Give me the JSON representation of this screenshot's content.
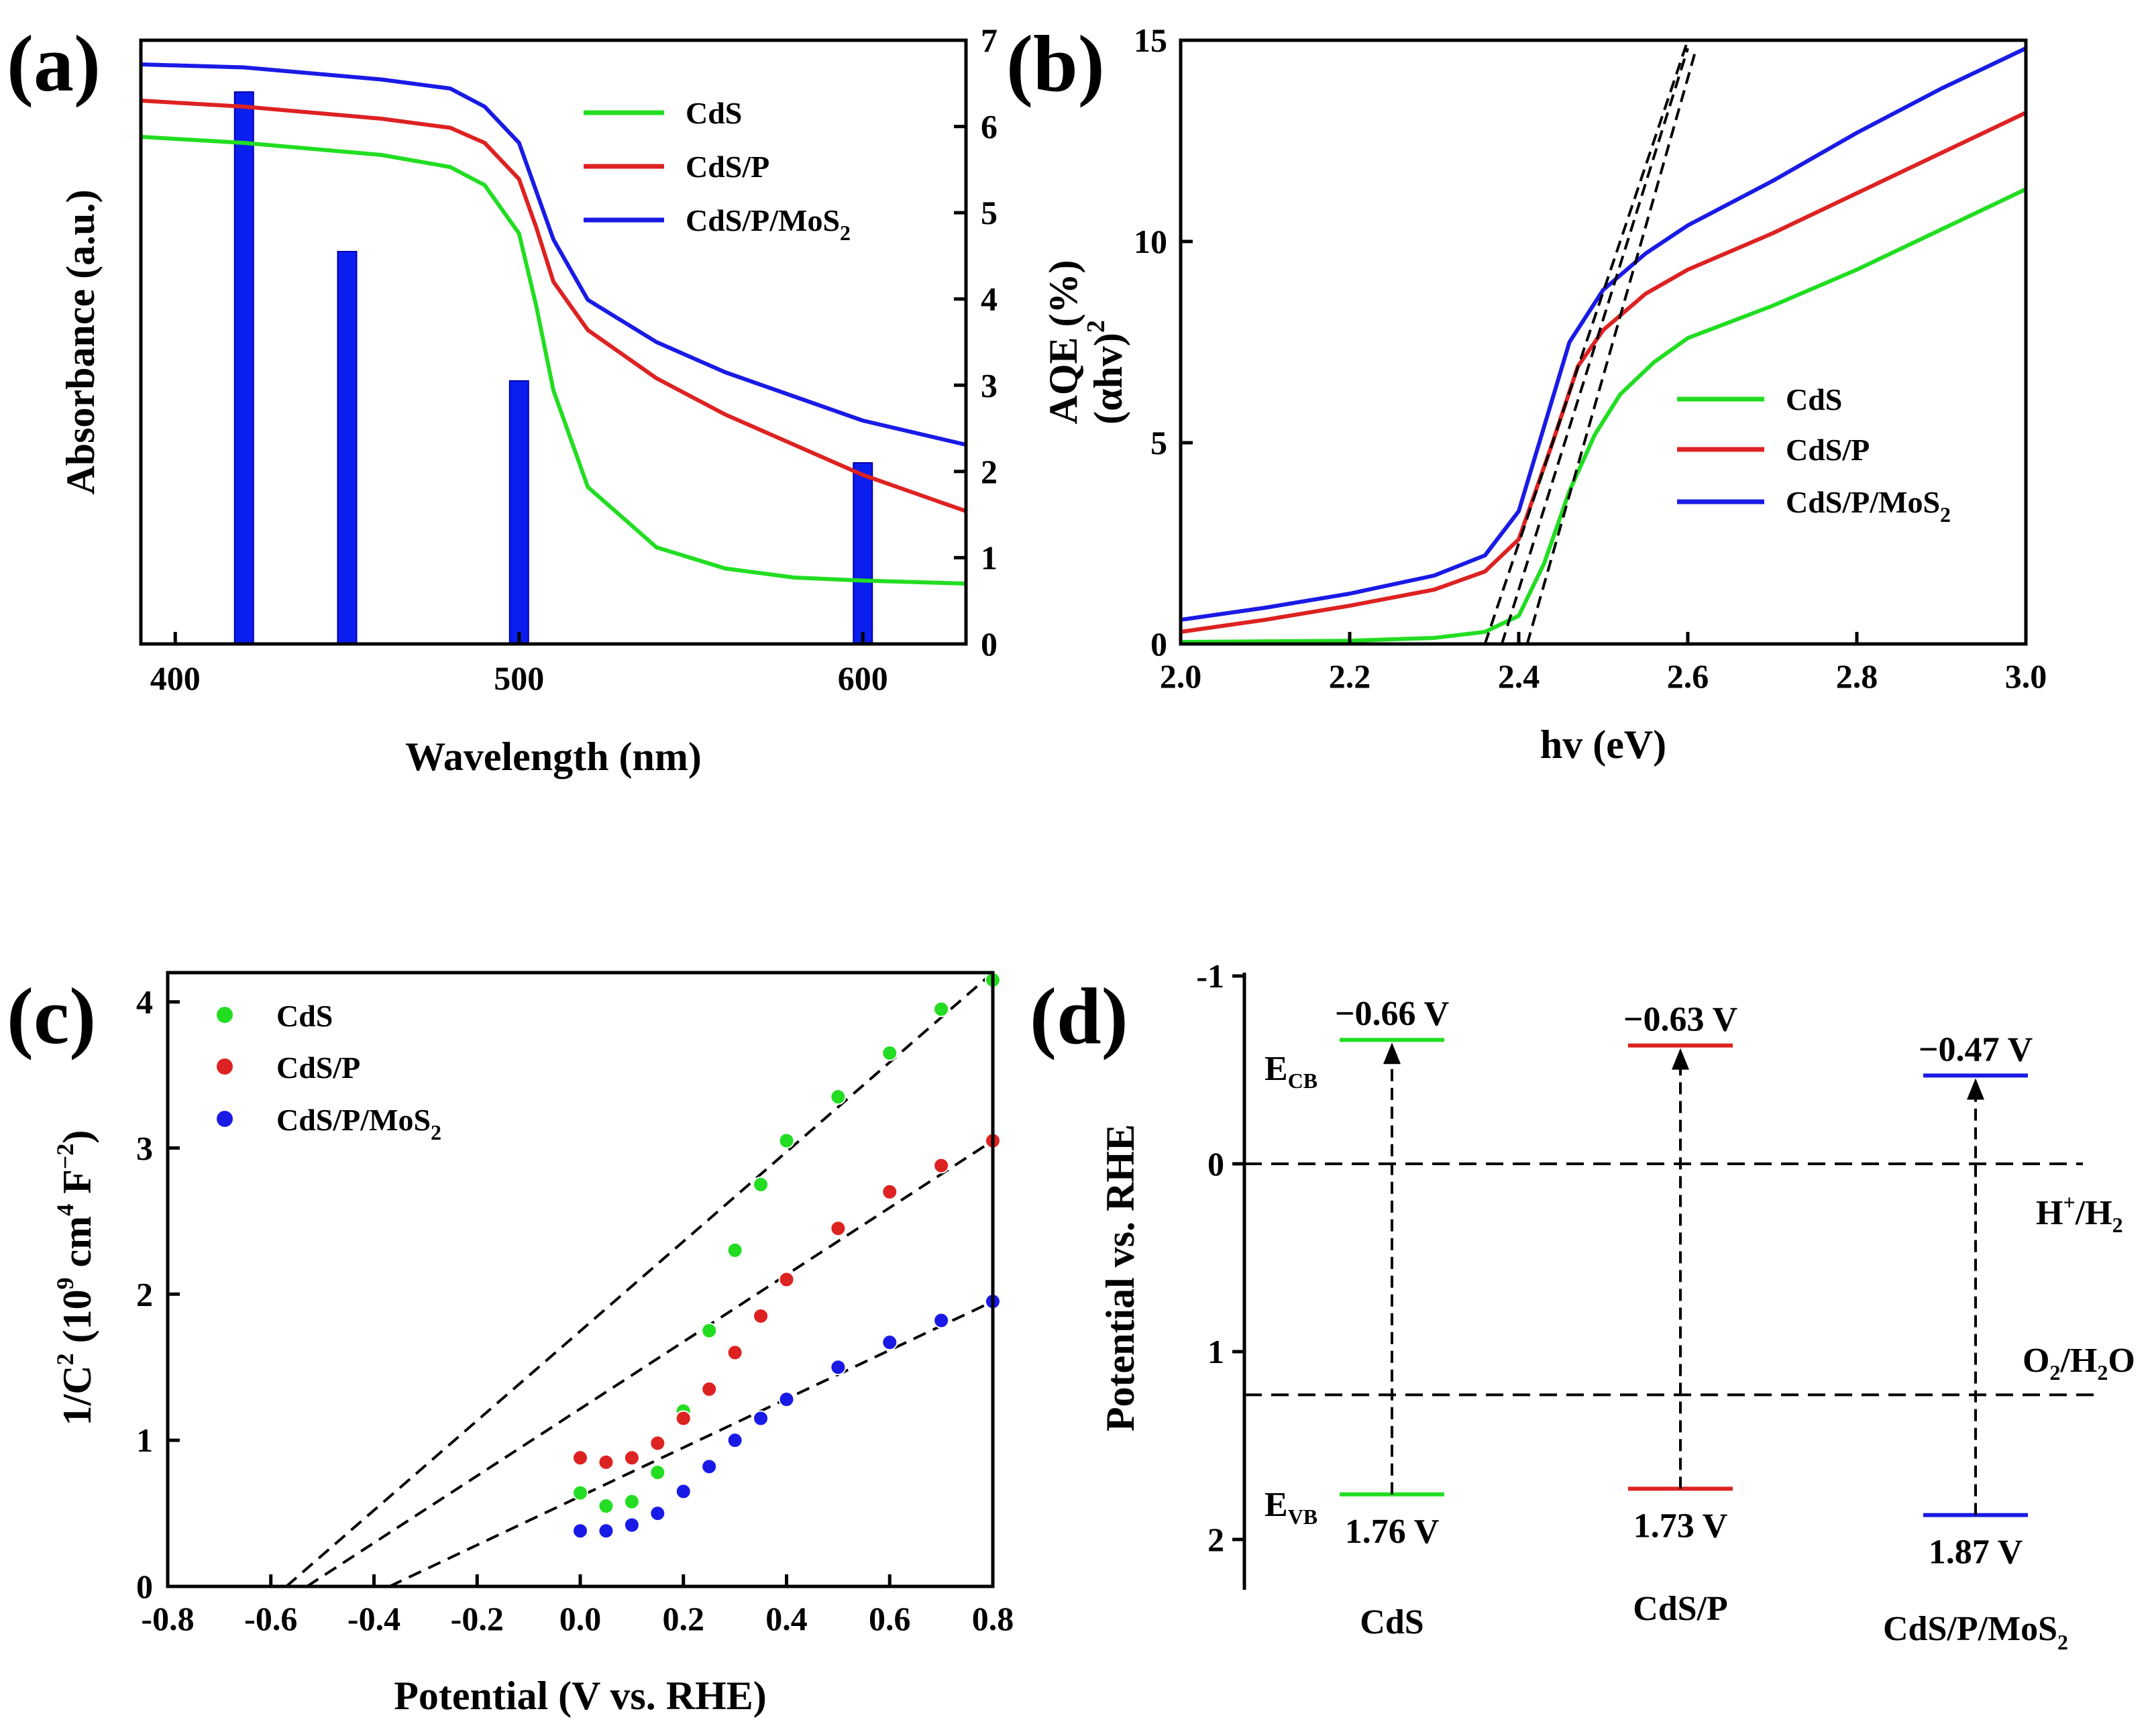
{
  "colors": {
    "CdS": "#22dd22",
    "CdS/P": "#dd2222",
    "CdS/P/MoS2": "#1a1ae6",
    "bar": "#0a1ef0",
    "dashed": "#000000"
  },
  "chart_data": [
    {
      "panel": "(a)",
      "type": "line",
      "xlabel": "Wavelength (nm)",
      "ylabel": "Absorbance (a.u.)",
      "y2label": "AQE (%)",
      "xlim": [
        390,
        630
      ],
      "xticks": [
        "400",
        "500",
        "600"
      ],
      "y2lim": [
        0,
        7
      ],
      "y2ticks": [
        "0",
        "1",
        "2",
        "3",
        "4",
        "5",
        "6",
        "7"
      ],
      "legend": [
        "CdS",
        "CdS/P",
        "CdS/P/MoS2"
      ],
      "series": [
        {
          "name": "CdS",
          "x": [
            390,
            420,
            460,
            480,
            490,
            500,
            505,
            510,
            520,
            540,
            560,
            580,
            600,
            630
          ],
          "y": [
            0.84,
            0.83,
            0.81,
            0.79,
            0.76,
            0.68,
            0.56,
            0.42,
            0.26,
            0.16,
            0.125,
            0.11,
            0.105,
            0.1
          ]
        },
        {
          "name": "CdS/P",
          "x": [
            390,
            420,
            460,
            480,
            490,
            500,
            505,
            510,
            520,
            540,
            560,
            580,
            600,
            630
          ],
          "y": [
            0.9,
            0.89,
            0.87,
            0.855,
            0.83,
            0.77,
            0.69,
            0.6,
            0.52,
            0.44,
            0.38,
            0.33,
            0.28,
            0.22
          ]
        },
        {
          "name": "CdS/P/MoS2",
          "x": [
            390,
            420,
            460,
            480,
            490,
            500,
            505,
            510,
            520,
            540,
            560,
            580,
            600,
            630
          ],
          "y": [
            0.96,
            0.955,
            0.935,
            0.92,
            0.89,
            0.83,
            0.75,
            0.67,
            0.57,
            0.5,
            0.45,
            0.41,
            0.37,
            0.33
          ]
        }
      ],
      "bars": {
        "name": "AQE",
        "x": [
          420,
          450,
          500,
          600
        ],
        "values": [
          6.4,
          4.55,
          3.05,
          2.1
        ]
      }
    },
    {
      "panel": "(b)",
      "type": "line",
      "xlabel": "hv (eV)",
      "ylabel": "(αhv)",
      "ylabel_sup": "2",
      "xlim": [
        2.0,
        3.0
      ],
      "ylim": [
        0,
        15
      ],
      "xticks": [
        "2.0",
        "2.2",
        "2.4",
        "2.6",
        "2.8",
        "3.0"
      ],
      "yticks": [
        "0",
        "5",
        "10",
        "15"
      ],
      "legend": [
        "CdS",
        "CdS/P",
        "CdS/P/MoS2"
      ],
      "series": [
        {
          "name": "CdS",
          "x": [
            2.0,
            2.2,
            2.3,
            2.36,
            2.4,
            2.43,
            2.46,
            2.49,
            2.52,
            2.56,
            2.6,
            2.7,
            2.8,
            2.9,
            3.0
          ],
          "y": [
            0.05,
            0.08,
            0.15,
            0.3,
            0.7,
            2.0,
            3.8,
            5.2,
            6.2,
            7.0,
            7.6,
            8.4,
            9.3,
            10.3,
            11.3
          ]
        },
        {
          "name": "CdS/P",
          "x": [
            2.0,
            2.1,
            2.2,
            2.3,
            2.36,
            2.4,
            2.44,
            2.47,
            2.5,
            2.55,
            2.6,
            2.7,
            2.8,
            2.9,
            3.0
          ],
          "y": [
            0.3,
            0.6,
            0.95,
            1.35,
            1.8,
            2.6,
            5.0,
            6.9,
            7.8,
            8.7,
            9.3,
            10.2,
            11.2,
            12.2,
            13.2
          ]
        },
        {
          "name": "CdS/P/MoS2",
          "x": [
            2.0,
            2.1,
            2.2,
            2.3,
            2.36,
            2.4,
            2.43,
            2.46,
            2.5,
            2.55,
            2.6,
            2.7,
            2.8,
            2.9,
            3.0
          ],
          "y": [
            0.6,
            0.9,
            1.25,
            1.7,
            2.2,
            3.3,
            5.4,
            7.5,
            8.8,
            9.7,
            10.4,
            11.5,
            12.7,
            13.8,
            14.8
          ]
        }
      ],
      "fit_lines": [
        {
          "x": [
            2.36,
            2.6
          ],
          "y": [
            0,
            15
          ]
        },
        {
          "x": [
            2.38,
            2.6
          ],
          "y": [
            0,
            14.8
          ]
        },
        {
          "x": [
            2.41,
            2.61
          ],
          "y": [
            0,
            14.8
          ]
        }
      ]
    },
    {
      "panel": "(c)",
      "type": "scatter",
      "xlabel": "Potential (V vs. RHE)",
      "ylabel": "1/C",
      "ylabel_sup": "2",
      "ylabel_rest": " (10",
      "ylabel_sup2": "9",
      "ylabel_rest2": " cm",
      "ylabel_sup3": "4",
      "ylabel_rest3": " F",
      "ylabel_sup4": "−2",
      "ylabel_end": ")",
      "xlim": [
        -0.8,
        0.8
      ],
      "ylim": [
        0,
        4.2
      ],
      "xticks": [
        "-0.8",
        "-0.6",
        "-0.4",
        "-0.2",
        "0.0",
        "0.2",
        "0.4",
        "0.6",
        "0.8"
      ],
      "yticks": [
        "0",
        "1",
        "2",
        "3",
        "4"
      ],
      "legend": [
        "CdS",
        "CdS/P",
        "CdS/P/MoS2"
      ],
      "series": [
        {
          "name": "CdS",
          "x": [
            0.0,
            0.05,
            0.1,
            0.15,
            0.2,
            0.25,
            0.3,
            0.35,
            0.4,
            0.5,
            0.6,
            0.7,
            0.8
          ],
          "y": [
            0.64,
            0.55,
            0.58,
            0.78,
            1.2,
            1.75,
            2.3,
            2.75,
            3.05,
            3.35,
            3.65,
            3.95,
            4.15
          ]
        },
        {
          "name": "CdS/P",
          "x": [
            0.0,
            0.05,
            0.1,
            0.15,
            0.2,
            0.25,
            0.3,
            0.35,
            0.4,
            0.5,
            0.6,
            0.7,
            0.8
          ],
          "y": [
            0.88,
            0.85,
            0.88,
            0.98,
            1.15,
            1.35,
            1.6,
            1.85,
            2.1,
            2.45,
            2.7,
            2.88,
            3.05
          ]
        },
        {
          "name": "CdS/P/MoS2",
          "x": [
            0.0,
            0.05,
            0.1,
            0.15,
            0.2,
            0.25,
            0.3,
            0.35,
            0.4,
            0.5,
            0.6,
            0.7,
            0.8
          ],
          "y": [
            0.38,
            0.38,
            0.42,
            0.5,
            0.65,
            0.82,
            1.0,
            1.15,
            1.28,
            1.5,
            1.67,
            1.82,
            1.95
          ]
        }
      ],
      "fit_lines": [
        {
          "x": [
            -0.57,
            0.8
          ],
          "y": [
            0,
            4.2
          ]
        },
        {
          "x": [
            -0.53,
            0.8
          ],
          "y": [
            0,
            3.05
          ]
        },
        {
          "x": [
            -0.37,
            0.8
          ],
          "y": [
            0,
            1.95
          ]
        }
      ]
    },
    {
      "panel": "(d)",
      "type": "diagram",
      "ylabel": "Potential vs. RHE",
      "ylim": [
        -1,
        2.2
      ],
      "yticks": [
        "-1",
        "0",
        "1",
        "2"
      ],
      "samples": [
        {
          "name": "CdS",
          "cb": -0.66,
          "vb": 1.76,
          "cb_label": "−0.66 V",
          "vb_label": "1.76 V"
        },
        {
          "name": "CdS/P",
          "cb": -0.63,
          "vb": 1.73,
          "cb_label": "−0.63 V",
          "vb_label": "1.73 V"
        },
        {
          "name": "CdS/P/MoS2",
          "cb": -0.47,
          "vb": 1.87,
          "cb_label": "−0.47 V",
          "vb_label": "1.87 V"
        }
      ],
      "reference_levels": [
        {
          "label_main": "H",
          "label_sup": "+",
          "label_rest": "/H",
          "label_sub": "2",
          "value": 0
        },
        {
          "label_main": "O",
          "label_sub": "2",
          "label_rest": "/H",
          "label_sub2": "2",
          "label_end": "O",
          "value": 1.23
        }
      ],
      "ecb_label": "E",
      "ecb_sub": "CB",
      "evb_label": "E",
      "evb_sub": "VB"
    }
  ]
}
